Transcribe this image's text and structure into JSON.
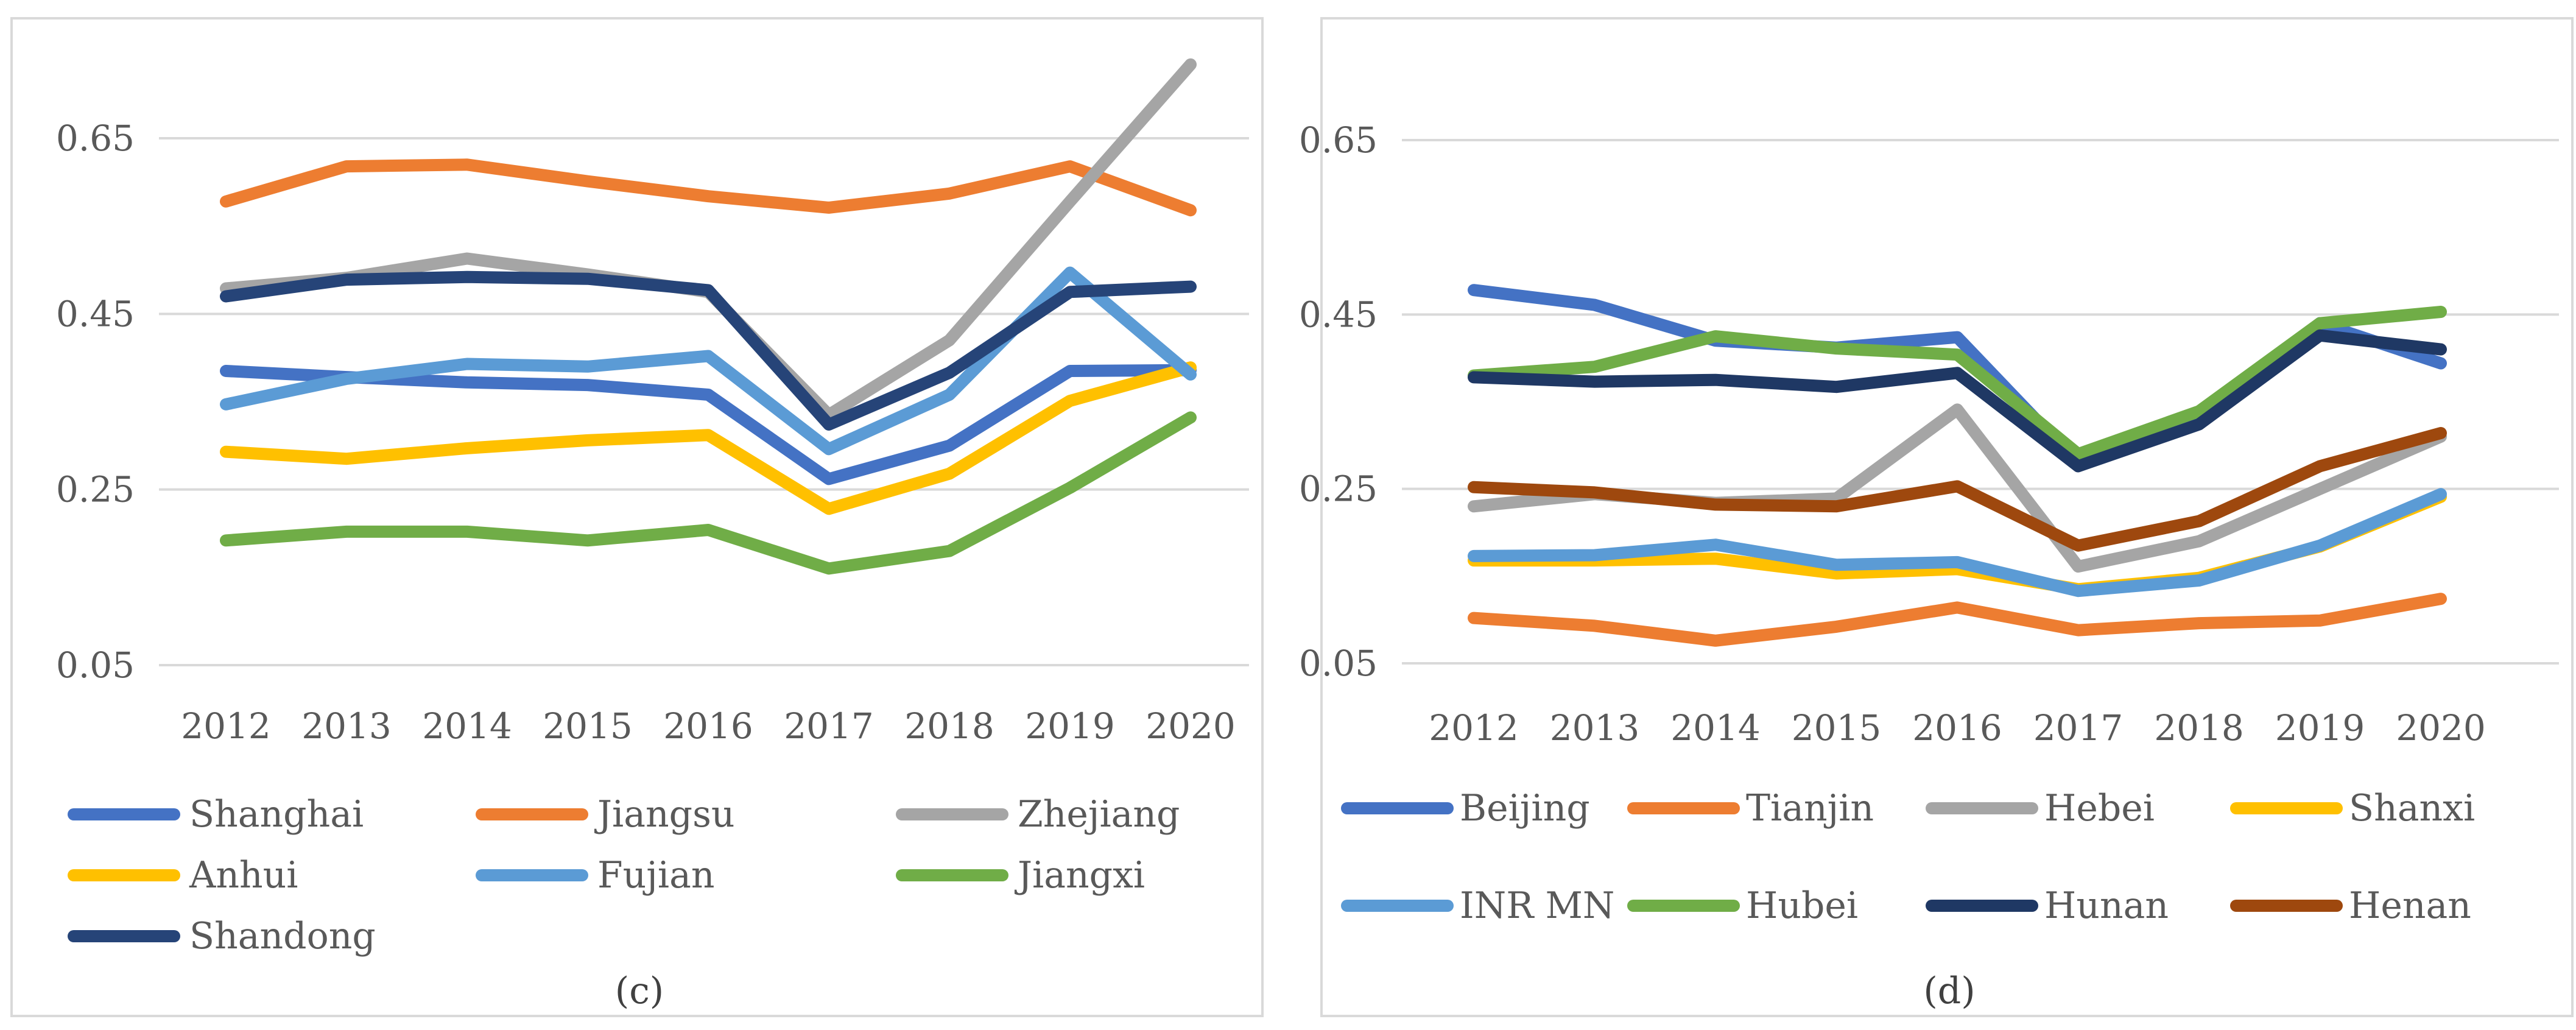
{
  "chart_data": [
    {
      "id": "c",
      "type": "line",
      "caption": "(c)",
      "categories": [
        "2012",
        "2013",
        "2014",
        "2015",
        "2016",
        "2017",
        "2018",
        "2019",
        "2020"
      ],
      "yticks": [
        "0.05",
        "0.25",
        "0.45",
        "0.65"
      ],
      "ylim": [
        0.05,
        0.65
      ],
      "ymax_plot": 0.75,
      "grid": true,
      "series": [
        {
          "name": "Shanghai",
          "color": "#4472C4",
          "values": [
            0.385,
            0.378,
            0.372,
            0.369,
            0.358,
            0.262,
            0.3,
            0.385,
            0.386
          ]
        },
        {
          "name": "Jiangsu",
          "color": "#ED7D31",
          "values": [
            0.578,
            0.618,
            0.62,
            0.601,
            0.584,
            0.571,
            0.587,
            0.618,
            0.568
          ]
        },
        {
          "name": "Zhejiang",
          "color": "#A5A5A5",
          "values": [
            0.479,
            0.491,
            0.513,
            0.495,
            0.475,
            0.335,
            0.42,
            0.578,
            0.734
          ]
        },
        {
          "name": "Anhui",
          "color": "#FFC000",
          "values": [
            0.293,
            0.285,
            0.297,
            0.306,
            0.312,
            0.228,
            0.268,
            0.351,
            0.389
          ]
        },
        {
          "name": "Fujian",
          "color": "#5B9BD5",
          "values": [
            0.347,
            0.376,
            0.393,
            0.39,
            0.402,
            0.296,
            0.358,
            0.497,
            0.381
          ]
        },
        {
          "name": "Jiangxi",
          "color": "#70AD47",
          "values": [
            0.192,
            0.202,
            0.202,
            0.192,
            0.204,
            0.16,
            0.18,
            0.252,
            0.332
          ]
        },
        {
          "name": "Shandong",
          "color": "#264478",
          "values": [
            0.47,
            0.489,
            0.492,
            0.49,
            0.477,
            0.324,
            0.383,
            0.475,
            0.481
          ]
        }
      ],
      "legend": [
        [
          "Shanghai",
          "Jiangsu",
          "Zhejiang"
        ],
        [
          "Anhui",
          "Fujian",
          "Jiangxi"
        ],
        [
          "Shandong"
        ]
      ]
    },
    {
      "id": "d",
      "type": "line",
      "caption": "(d)",
      "categories": [
        "2012",
        "2013",
        "2014",
        "2015",
        "2016",
        "2017",
        "2018",
        "2019",
        "2020"
      ],
      "yticks": [
        "0.05",
        "0.25",
        "0.45",
        "0.65"
      ],
      "ylim": [
        0.05,
        0.65
      ],
      "ymax_plot": 0.75,
      "grid": true,
      "series": [
        {
          "name": "Beijing",
          "color": "#4472C4",
          "values": [
            0.478,
            0.461,
            0.42,
            0.412,
            0.424,
            0.279,
            0.331,
            0.44,
            0.394
          ]
        },
        {
          "name": "Tianjin",
          "color": "#ED7D31",
          "values": [
            0.102,
            0.093,
            0.076,
            0.092,
            0.114,
            0.088,
            0.096,
            0.099,
            0.124
          ]
        },
        {
          "name": "Hebei",
          "color": "#A5A5A5",
          "values": [
            0.23,
            0.244,
            0.234,
            0.239,
            0.341,
            0.161,
            0.19,
            0.25,
            0.31
          ]
        },
        {
          "name": "Shanxi",
          "color": "#FFC000",
          "values": [
            0.168,
            0.168,
            0.17,
            0.153,
            0.158,
            0.135,
            0.148,
            0.184,
            0.241
          ]
        },
        {
          "name": "INR MN",
          "color": "#5B9BD5",
          "values": [
            0.173,
            0.174,
            0.186,
            0.163,
            0.166,
            0.133,
            0.145,
            0.185,
            0.244
          ]
        },
        {
          "name": "Hubei",
          "color": "#70AD47",
          "values": [
            0.38,
            0.39,
            0.425,
            0.411,
            0.404,
            0.29,
            0.339,
            0.44,
            0.453
          ]
        },
        {
          "name": "Hunan",
          "color": "#1F3864",
          "values": [
            0.378,
            0.373,
            0.375,
            0.367,
            0.383,
            0.276,
            0.324,
            0.426,
            0.41
          ]
        },
        {
          "name": "Henan",
          "color": "#9E480E",
          "values": [
            0.252,
            0.246,
            0.232,
            0.23,
            0.253,
            0.185,
            0.213,
            0.276,
            0.314
          ]
        }
      ],
      "legend": [
        [
          "Beijing",
          "Tianjin",
          "Hebei",
          "Shanxi"
        ],
        [
          "INR MN",
          "Hubei",
          "Hunan",
          "Henan"
        ]
      ]
    }
  ]
}
